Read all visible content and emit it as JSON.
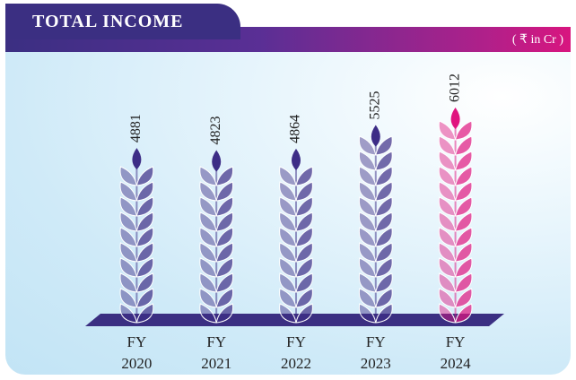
{
  "chart_data": {
    "type": "wheat-bar",
    "title": "TOTAL INCOME",
    "unit": "( ₹ in Cr )",
    "categories": [
      "FY 2020",
      "FY 2021",
      "FY 2022",
      "FY 2023",
      "FY 2024"
    ],
    "values": [
      4881,
      4823,
      4864,
      5525,
      6012
    ],
    "colors": [
      "#3d2d86",
      "#3d2d86",
      "#3d2d86",
      "#3d2d86",
      "#e0157f"
    ]
  }
}
